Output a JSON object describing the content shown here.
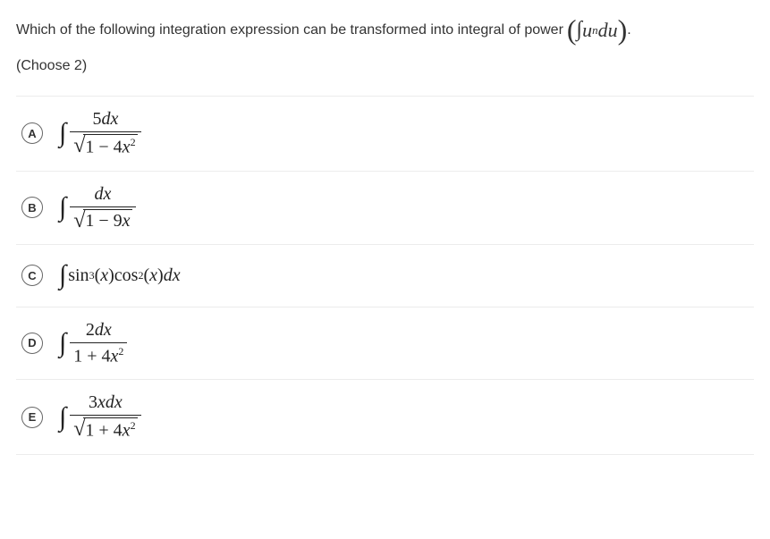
{
  "question": {
    "prefix": "Which of the following integration expression can be transformed into integral of power",
    "power_form": "(∫uⁿdu)",
    "suffix": ".",
    "instruction": "(Choose 2)"
  },
  "options": [
    {
      "letter": "A",
      "numerator_pre": "5",
      "numerator_var": "dx",
      "radicand_pre": "1 − 4",
      "radicand_var": "x",
      "radicand_exp": "2",
      "has_sqrt": true,
      "type": "frac-sqrt"
    },
    {
      "letter": "B",
      "numerator_var": "dx",
      "radicand_pre": "1 − 9",
      "radicand_var": "x",
      "has_sqrt": true,
      "type": "frac-sqrt-nosq"
    },
    {
      "letter": "C",
      "inline_parts": {
        "t1": "sin",
        "e1": "3",
        "p1": "(",
        "v1": "x",
        "p2": ")cos",
        "e2": "2",
        "p3": "(",
        "v2": "x",
        "p4": ")",
        "dx": "dx"
      },
      "type": "inline"
    },
    {
      "letter": "D",
      "numerator_pre": "2",
      "numerator_var": "dx",
      "den_pre": "1 + 4",
      "den_var": "x",
      "den_exp": "2",
      "type": "frac-plain"
    },
    {
      "letter": "E",
      "numerator_pre": "3",
      "numerator_var": "xdx",
      "radicand_pre": "1 + 4",
      "radicand_var": "x",
      "radicand_exp": "2",
      "has_sqrt": true,
      "type": "frac-sqrt"
    }
  ],
  "styles": {
    "text_color": "#333333",
    "math_color": "#222222",
    "border_color": "#ececec",
    "circle_border": "#666666",
    "background": "#ffffff",
    "font_body": "Arial",
    "font_math": "Times New Roman",
    "fontsize_body": 16,
    "fontsize_math": 20
  }
}
